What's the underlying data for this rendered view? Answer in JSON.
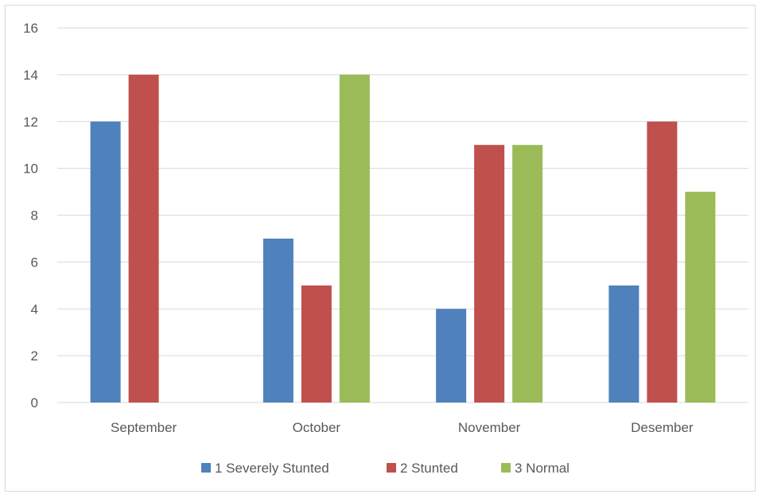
{
  "chart_data": {
    "type": "bar",
    "categories": [
      "September",
      "October",
      "November",
      "Desember"
    ],
    "series": [
      {
        "name": "1 Severely Stunted",
        "values": [
          12,
          7,
          4,
          5
        ],
        "color": "#4f81bd"
      },
      {
        "name": "2 Stunted",
        "values": [
          14,
          5,
          11,
          12
        ],
        "color": "#c0504d"
      },
      {
        "name": "3 Normal",
        "values": [
          0,
          14,
          11,
          9
        ],
        "color": "#9bbb59"
      }
    ],
    "ylim": [
      0,
      16
    ],
    "yticks": [
      "0",
      "2",
      "4",
      "6",
      "8",
      "10",
      "12",
      "14",
      "16"
    ],
    "grid": true,
    "legend_position": "bottom",
    "gridline_color": "#d9d9d9"
  }
}
